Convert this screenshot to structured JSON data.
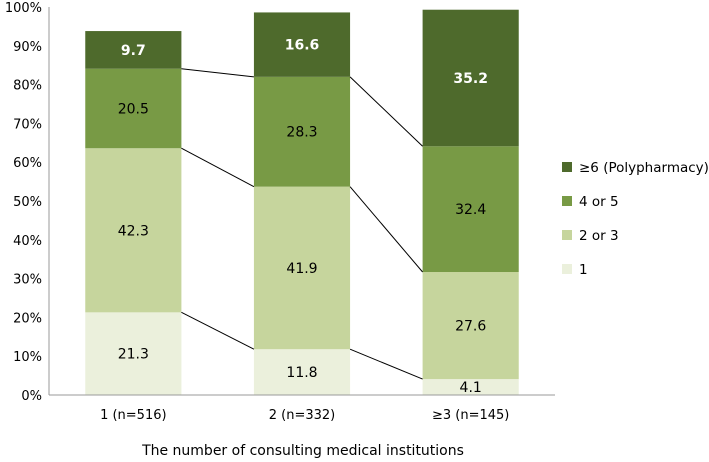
{
  "chart_data": {
    "type": "bar",
    "stacked": true,
    "categories": [
      "1 (n=516)",
      "2 (n=332)",
      "≥3 (n=145)"
    ],
    "series": [
      {
        "name": "1",
        "values": [
          21.3,
          11.8,
          4.1
        ],
        "color": "#ebf0dc"
      },
      {
        "name": "2 or 3",
        "values": [
          42.3,
          41.9,
          27.6
        ],
        "color": "#c6d59d"
      },
      {
        "name": "4 or 5",
        "values": [
          20.5,
          28.3,
          32.4
        ],
        "color": "#789a45"
      },
      {
        "name": "≥6 (Polypharmacy)",
        "values": [
          9.7,
          16.6,
          35.2
        ],
        "color": "#4e6a2c"
      }
    ],
    "yticks": [
      "0%",
      "10%",
      "20%",
      "30%",
      "40%",
      "50%",
      "60%",
      "70%",
      "80%",
      "90%",
      "100%"
    ],
    "ylim": [
      0,
      100
    ],
    "xlabel": "The number of consulting medical institutions",
    "ylabel": "",
    "legend_position": "right",
    "series_lines": true
  }
}
